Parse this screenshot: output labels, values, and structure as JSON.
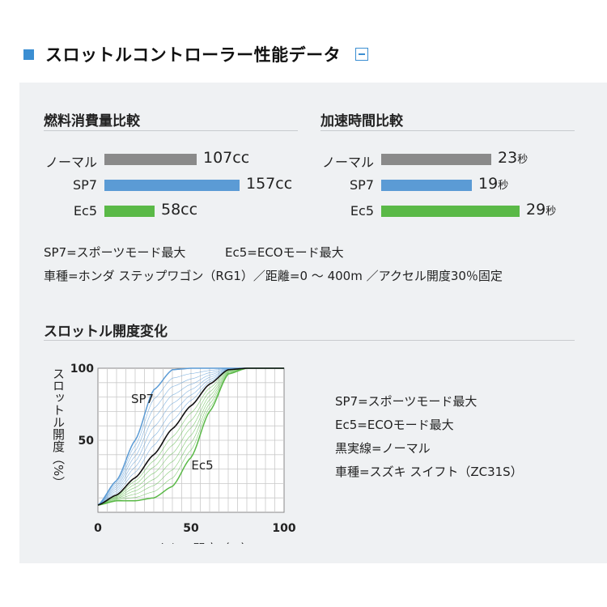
{
  "header": {
    "title": "スロットルコントローラー性能データ"
  },
  "fuel": {
    "title": "燃料消費量比較",
    "unit": "cc",
    "max": 157,
    "rows": [
      {
        "label": "ノーマル",
        "value": 107,
        "value_text": "107cc",
        "color": "#8a8a8a"
      },
      {
        "label": "SP7",
        "value": 157,
        "value_text": "157cc",
        "color": "#5b9bd5"
      },
      {
        "label": "Ec5",
        "value": 58,
        "value_text": "58cc",
        "color": "#5ab947"
      }
    ]
  },
  "accel": {
    "title": "加速時間比較",
    "unit": "秒",
    "max": 29,
    "rows": [
      {
        "label": "ノーマル",
        "value": 23,
        "value_num": "23",
        "value_unit": "秒",
        "color": "#8a8a8a"
      },
      {
        "label": "SP7",
        "value": 19,
        "value_num": "19",
        "value_unit": "秒",
        "color": "#5b9bd5"
      },
      {
        "label": "Ec5",
        "value": 29,
        "value_num": "29",
        "value_unit": "秒",
        "color": "#5ab947"
      }
    ]
  },
  "notes": {
    "mode_sp7": "SP7=スポーツモード最大",
    "mode_ec5": "Ec5=ECOモード最大",
    "vehicle": "車種=ホンダ ステップワゴン（RG1）／距離=0 ～ 400m ／アクセル開度30％固定"
  },
  "throttle": {
    "title": "スロットル開度変化",
    "legend": [
      "SP7=スポーツモード最大",
      "Ec5=ECOモード最大",
      "黒実線=ノーマル",
      "車種=スズキ スイフト（ZC31S）"
    ]
  },
  "chart_data": [
    {
      "type": "bar",
      "title": "燃料消費量比較",
      "categories": [
        "ノーマル",
        "SP7",
        "Ec5"
      ],
      "values": [
        107,
        157,
        58
      ],
      "unit": "cc"
    },
    {
      "type": "bar",
      "title": "加速時間比較",
      "categories": [
        "ノーマル",
        "SP7",
        "Ec5"
      ],
      "values": [
        23,
        19,
        29
      ],
      "unit": "秒"
    },
    {
      "type": "line",
      "title": "スロットル開度変化",
      "xlabel": "アクセル開度（%）",
      "ylabel": "スロットル開度（%）",
      "xlim": [
        0,
        100
      ],
      "ylim": [
        0,
        100
      ],
      "xticks": [
        0,
        50,
        100
      ],
      "yticks": [
        50,
        100
      ],
      "grid": true,
      "series": [
        {
          "name": "SP7",
          "color": "#5b9bd5",
          "x": [
            0,
            10,
            20,
            30,
            40,
            50,
            60,
            70,
            80,
            90,
            100
          ],
          "y": [
            5,
            22,
            50,
            85,
            99,
            100,
            100,
            100,
            100,
            100,
            100
          ]
        },
        {
          "name": "黒実線",
          "color": "#111111",
          "x": [
            0,
            10,
            20,
            30,
            40,
            50,
            60,
            70,
            80,
            90,
            100
          ],
          "y": [
            5,
            12,
            24,
            40,
            58,
            74,
            89,
            99,
            100,
            100,
            100
          ]
        },
        {
          "name": "Ec5",
          "color": "#5ab947",
          "x": [
            0,
            10,
            20,
            30,
            40,
            50,
            60,
            70,
            80,
            90,
            100
          ],
          "y": [
            5,
            8,
            8,
            10,
            18,
            38,
            70,
            96,
            100,
            100,
            100
          ]
        }
      ],
      "annotations": [
        "SP7",
        "Ec5"
      ]
    }
  ]
}
